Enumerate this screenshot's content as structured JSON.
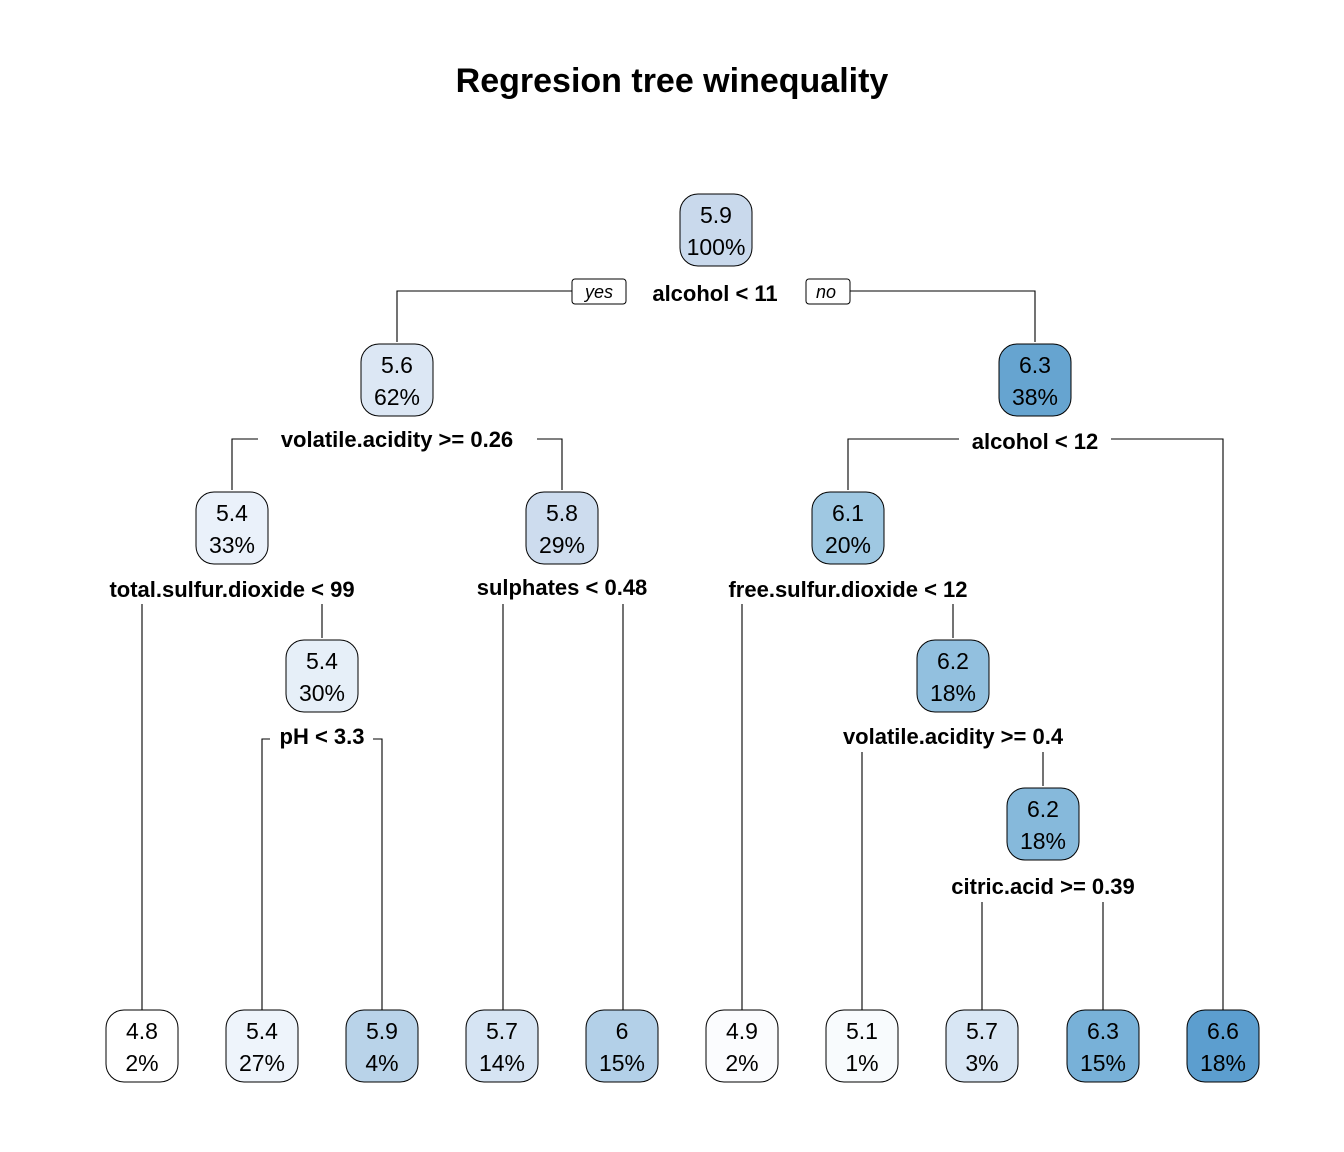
{
  "title": "Regresion tree winequality",
  "branch_labels": {
    "yes": "yes",
    "no": "no"
  },
  "nodes": [
    {
      "id": "root",
      "value": "5.9",
      "pct": "100%",
      "color": "#c9d9ec"
    },
    {
      "id": "n2",
      "value": "5.6",
      "pct": "62%",
      "color": "#dce7f4"
    },
    {
      "id": "n3",
      "value": "6.3",
      "pct": "38%",
      "color": "#66a4d0"
    },
    {
      "id": "n4",
      "value": "5.4",
      "pct": "33%",
      "color": "#eaf1fa"
    },
    {
      "id": "n5",
      "value": "5.8",
      "pct": "29%",
      "color": "#cddcee"
    },
    {
      "id": "n6",
      "value": "6.1",
      "pct": "20%",
      "color": "#9fc8e2"
    },
    {
      "id": "n9",
      "value": "5.4",
      "pct": "30%",
      "color": "#e6eff8"
    },
    {
      "id": "n13",
      "value": "6.2",
      "pct": "18%",
      "color": "#92c0df"
    },
    {
      "id": "n27",
      "value": "6.2",
      "pct": "18%",
      "color": "#86b9db"
    },
    {
      "id": "l1",
      "value": "4.8",
      "pct": "2%",
      "color": "#ffffff"
    },
    {
      "id": "l2",
      "value": "5.4",
      "pct": "27%",
      "color": "#eef4fb"
    },
    {
      "id": "l3",
      "value": "5.9",
      "pct": "4%",
      "color": "#b9d3e9"
    },
    {
      "id": "l4",
      "value": "5.7",
      "pct": "14%",
      "color": "#d6e4f3"
    },
    {
      "id": "l5",
      "value": "6",
      "pct": "15%",
      "color": "#b3d0e8"
    },
    {
      "id": "l6",
      "value": "4.9",
      "pct": "2%",
      "color": "#fbfcfe"
    },
    {
      "id": "l7",
      "value": "5.1",
      "pct": "1%",
      "color": "#f8fbfd"
    },
    {
      "id": "l8",
      "value": "5.7",
      "pct": "3%",
      "color": "#d8e6f4"
    },
    {
      "id": "l9",
      "value": "6.3",
      "pct": "15%",
      "color": "#78b1d8"
    },
    {
      "id": "l10",
      "value": "6.6",
      "pct": "18%",
      "color": "#5c9ecf"
    }
  ],
  "splits": [
    {
      "id": "s_root",
      "label": "alcohol < 11"
    },
    {
      "id": "s_n2",
      "label": "volatile.acidity >= 0.26"
    },
    {
      "id": "s_n3",
      "label": "alcohol < 12"
    },
    {
      "id": "s_n4",
      "label": "total.sulfur.dioxide < 99"
    },
    {
      "id": "s_n5",
      "label": "sulphates < 0.48"
    },
    {
      "id": "s_n6",
      "label": "free.sulfur.dioxide < 12"
    },
    {
      "id": "s_n9",
      "label": "pH < 3.3"
    },
    {
      "id": "s_n13",
      "label": "volatile.acidity >= 0.4"
    },
    {
      "id": "s_n27",
      "label": "citric.acid >= 0.39"
    }
  ]
}
